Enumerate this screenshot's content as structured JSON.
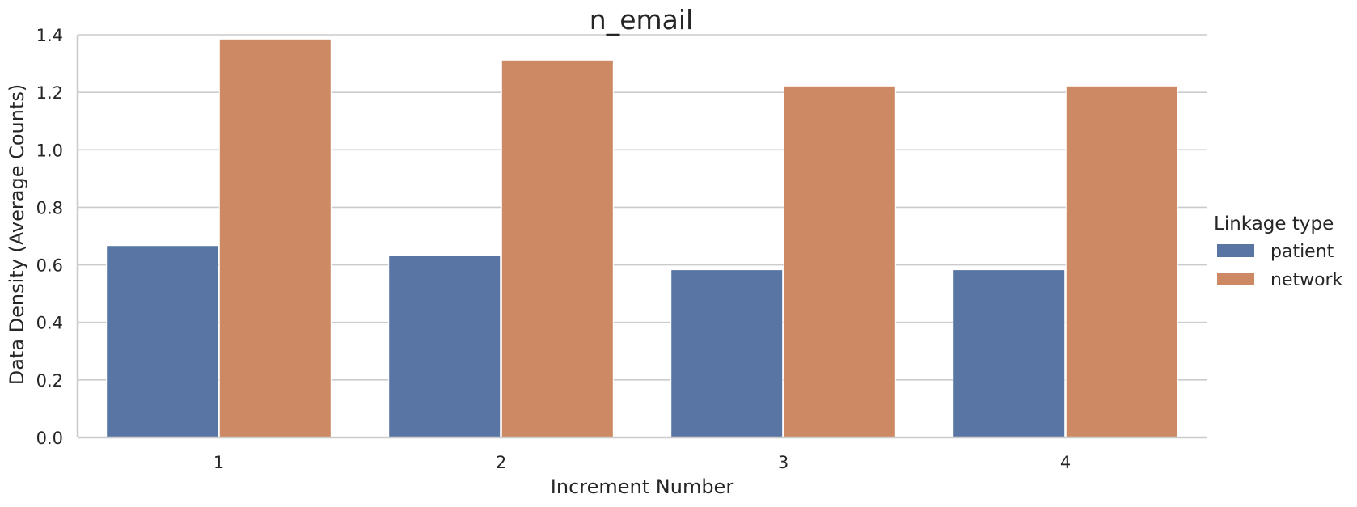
{
  "chart_data": {
    "type": "bar",
    "title": "n_email",
    "xlabel": "Increment Number",
    "ylabel": "Data Density (Average Counts)",
    "categories": [
      "1",
      "2",
      "3",
      "4"
    ],
    "series": [
      {
        "name": "patient",
        "color": "#5975a4",
        "values": [
          0.667,
          0.632,
          0.583,
          0.583
        ]
      },
      {
        "name": "network",
        "color": "#cc8963",
        "values": [
          1.385,
          1.312,
          1.222,
          1.222
        ]
      }
    ],
    "ylim": [
      0,
      1.4
    ],
    "yticks": [
      "0.0",
      "0.2",
      "0.4",
      "0.6",
      "0.8",
      "1.0",
      "1.2",
      "1.4"
    ],
    "grid": "horizontal",
    "legend": {
      "title": "Linkage type",
      "position": "right"
    }
  }
}
